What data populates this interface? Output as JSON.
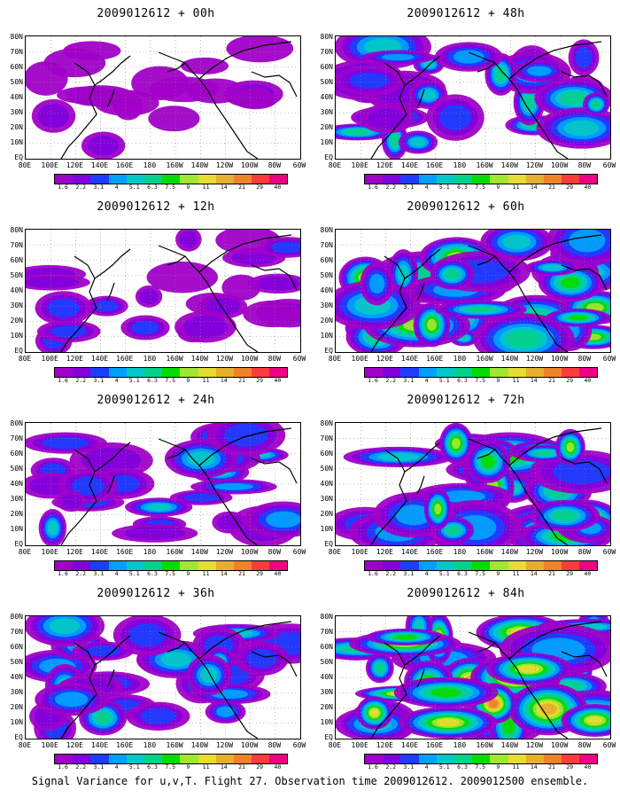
{
  "panels": [
    {
      "title": "2009012612 + 00h",
      "intensity": 0.15
    },
    {
      "title": "2009012612 + 48h",
      "intensity": 0.55
    },
    {
      "title": "2009012612 + 12h",
      "intensity": 0.28
    },
    {
      "title": "2009012612 + 60h",
      "intensity": 0.68
    },
    {
      "title": "2009012612 + 24h",
      "intensity": 0.4
    },
    {
      "title": "2009012612 + 72h",
      "intensity": 0.78
    },
    {
      "title": "2009012612 + 36h",
      "intensity": 0.5
    },
    {
      "title": "2009012612 + 84h",
      "intensity": 0.9
    }
  ],
  "lat_labels": [
    "80N",
    "70N",
    "60N",
    "50N",
    "40N",
    "30N",
    "20N",
    "10N",
    "EQ"
  ],
  "lon_labels": [
    "80E",
    "100E",
    "120E",
    "140E",
    "160E",
    "180",
    "160W",
    "140W",
    "120W",
    "100W",
    "80W",
    "60W"
  ],
  "colorbar": {
    "colors": [
      "#a000c8",
      "#8200dc",
      "#1e3cff",
      "#00a0ff",
      "#00c8c8",
      "#00d28c",
      "#00dc00",
      "#a0e632",
      "#e6dc32",
      "#e6af2d",
      "#f08228",
      "#fa3c3c",
      "#f00082"
    ],
    "labels": [
      "1.6",
      "2.2",
      "3.1",
      "4",
      "5.1",
      "6.3",
      "7.5",
      "9",
      "11",
      "14",
      "21",
      "29",
      "40"
    ]
  },
  "caption": "Signal Variance for u,v,T. Flight 27. Observation time 2009012612. 2009012500 ensemble."
}
